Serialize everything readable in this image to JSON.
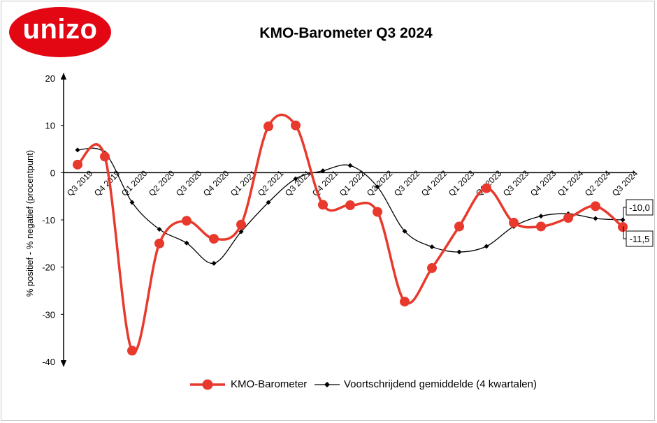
{
  "logo": {
    "text": "unizo",
    "color": "#e30613"
  },
  "chart_data": {
    "type": "line",
    "title": "KMO-Barometer Q3 2024",
    "xlabel": "",
    "ylabel": "% positief - % negatief (procentpunt)",
    "ylim": [
      -40,
      20
    ],
    "yticks": [
      20,
      10,
      0,
      -10,
      -20,
      -30,
      -40
    ],
    "categories": [
      "Q3 2019",
      "Q4 2019",
      "Q1 2020",
      "Q2 2020",
      "Q3 2020",
      "Q4 2020",
      "Q1 2021",
      "Q2 2021",
      "Q3 2021",
      "Q4 2021",
      "Q1 2022",
      "Q2 2022",
      "Q3 2022",
      "Q4 2022",
      "Q1 2023",
      "Q2 2023",
      "Q3 2023",
      "Q4 2023",
      "Q1 2024",
      "Q2 2024",
      "Q3 2024"
    ],
    "series": [
      {
        "name": "KMO-Barometer",
        "color": "#e8392c",
        "marker": "circle",
        "smooth": true,
        "values": [
          1.7,
          3.4,
          -37.7,
          -15.0,
          -10.2,
          -14.0,
          -11.0,
          9.8,
          10.0,
          -6.8,
          -6.9,
          -8.3,
          -27.3,
          -20.2,
          -11.4,
          -3.3,
          -10.6,
          -11.4,
          -9.6,
          -7.1,
          -11.5
        ]
      },
      {
        "name": "Voortschrijdend gemiddelde (4 kwartalen)",
        "color": "#000000",
        "marker": "diamond",
        "smooth": true,
        "values": [
          4.8,
          4.2,
          -6.3,
          -12.0,
          -14.9,
          -19.2,
          -12.5,
          -6.3,
          -1.3,
          0.4,
          1.5,
          -3.0,
          -12.4,
          -15.7,
          -16.8,
          -15.6,
          -11.4,
          -9.2,
          -8.7,
          -9.7,
          -10.0
        ]
      }
    ],
    "annotations": [
      {
        "label": "-10,0",
        "series": 1,
        "index": 20
      },
      {
        "label": "-11,5",
        "series": 0,
        "index": 20
      }
    ],
    "grid": false,
    "legend_position": "bottom"
  }
}
